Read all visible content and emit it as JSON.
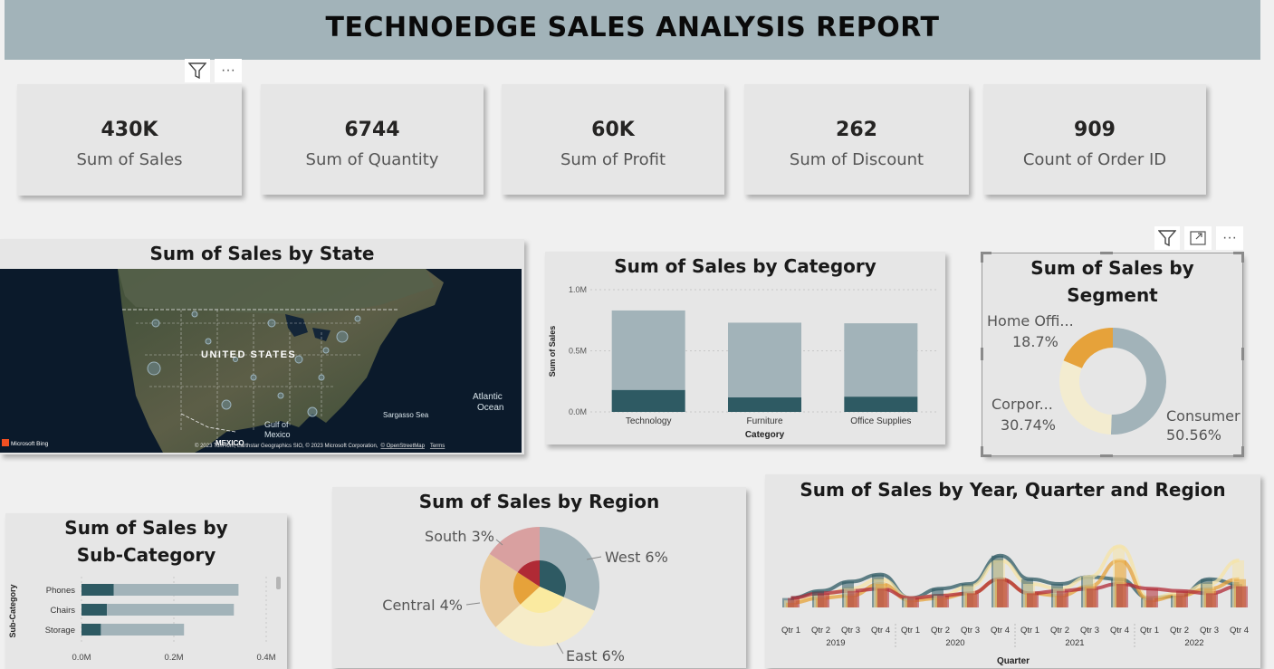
{
  "title": "TECHNOEDGE SALES ANALYSIS REPORT",
  "kpis": [
    {
      "value": "430K",
      "label": "Sum of Sales"
    },
    {
      "value": "6744",
      "label": "Sum of Quantity"
    },
    {
      "value": "60K",
      "label": "Sum of Profit"
    },
    {
      "value": "262",
      "label": "Sum of Discount"
    },
    {
      "value": "909",
      "label": "Count of Order ID"
    }
  ],
  "icons": {
    "filter": "filter-icon",
    "more": "more-options-icon",
    "focus": "focus-mode-icon"
  },
  "toolbar": {
    "more_label": "···"
  },
  "map": {
    "title": "Sum of Sales by State",
    "labels": {
      "country": "UNITED STATES",
      "mexico": "MEXICO",
      "gulf_1": "Gulf of",
      "gulf_2": "Mexico",
      "sargasso": "Sargasso Sea",
      "atlantic_1": "Atlantic",
      "atlantic_2": "Ocean"
    },
    "brand": "Microsoft Bing",
    "credits": "© 2023 TomTom, Earthstar Geographics SIO, © 2023 Microsoft Corporation,",
    "osm": "© OpenStreetMap",
    "terms": "Terms"
  },
  "chart_data": [
    {
      "type": "bar",
      "title": "Sum of Sales by Category",
      "categories": [
        "Technology",
        "Furniture",
        "Office Supplies"
      ],
      "series": [
        {
          "values": [
            180000,
            120000,
            125000
          ]
        },
        {
          "values": [
            650000,
            610000,
            600000
          ]
        }
      ],
      "xlabel": "Category",
      "ylabel": "Sum of Sales",
      "ylim": [
        0,
        1000000
      ],
      "yticks": [
        "0.0M",
        "0.5M",
        "1.0M"
      ],
      "grid": true,
      "colors": [
        "#2e5a63",
        "#a2b3b9"
      ]
    },
    {
      "type": "pie",
      "title_lines": [
        "Sum of Sales by",
        "Segment"
      ],
      "slices": [
        {
          "label": "Consumer",
          "value": 50.56,
          "text": "50.56%"
        },
        {
          "label": "Corpor...",
          "value": 30.74,
          "text": "30.74%"
        },
        {
          "label": "Home Offi...",
          "value": 18.7,
          "text": "18.7%"
        }
      ],
      "colors": [
        "#a2b3b9",
        "#f3ecd0",
        "#e6a23a"
      ]
    },
    {
      "type": "bar",
      "title_lines": [
        "Sum of Sales by",
        "Sub-Category"
      ],
      "categories": [
        "Phones",
        "Chairs",
        "Storage"
      ],
      "series": [
        {
          "values": [
            70000,
            55000,
            42000
          ]
        },
        {
          "values": [
            270000,
            275000,
            180000
          ]
        }
      ],
      "ylabel": "Sub-Category",
      "xlim": [
        0,
        400000
      ],
      "xticks": [
        "0.0M",
        "0.2M",
        "0.4M"
      ],
      "orientation": "horizontal",
      "colors": [
        "#2e5a63",
        "#a2b3b9"
      ]
    },
    {
      "type": "pie",
      "title": "Sum of Sales by Region",
      "slices": [
        {
          "label": "West",
          "text": "West 6%",
          "value": 6
        },
        {
          "label": "East",
          "text": "East 6%",
          "value": 6
        },
        {
          "label": "Central",
          "text": "Central 4%",
          "value": 4
        },
        {
          "label": "South",
          "text": "South 3%",
          "value": 3
        }
      ],
      "outer_colors": [
        "#a2b3b9",
        "#f6ecc8",
        "#e9c99a",
        "#d9a0a0"
      ],
      "inner_colors": [
        "#2e5a63",
        "#faeaa0",
        "#e6a23a",
        "#b02a35"
      ]
    },
    {
      "type": "bar",
      "title": "Sum of Sales by Year, Quarter and Region",
      "categories": [
        "Qtr 1",
        "Qtr 2",
        "Qtr 3",
        "Qtr 4",
        "Qtr 1",
        "Qtr 2",
        "Qtr 3",
        "Qtr 4",
        "Qtr 1",
        "Qtr 2",
        "Qtr 3",
        "Qtr 4",
        "Qtr 1",
        "Qtr 2",
        "Qtr 3",
        "Qtr 4"
      ],
      "years": [
        "2019",
        "2020",
        "2021",
        "2022"
      ],
      "xlabel": "Quarter",
      "series": [
        {
          "values": [
            4,
            7,
            11,
            14,
            4,
            8,
            10,
            22,
            12,
            10,
            13,
            12,
            4,
            5,
            12,
            10
          ]
        },
        {
          "values": [
            3,
            5,
            8,
            12,
            4,
            5,
            9,
            20,
            10,
            8,
            13,
            26,
            4,
            6,
            10,
            20
          ]
        },
        {
          "values": [
            2,
            4,
            5,
            10,
            3,
            4,
            6,
            12,
            6,
            5,
            9,
            20,
            3,
            5,
            8,
            12
          ]
        },
        {
          "values": [
            4,
            6,
            7,
            8,
            4,
            5,
            6,
            12,
            6,
            7,
            8,
            10,
            8,
            7,
            6,
            9
          ]
        }
      ],
      "colors": [
        "#2e5a63",
        "#f6e3a6",
        "#e6a23a",
        "#b02a35"
      ]
    }
  ]
}
